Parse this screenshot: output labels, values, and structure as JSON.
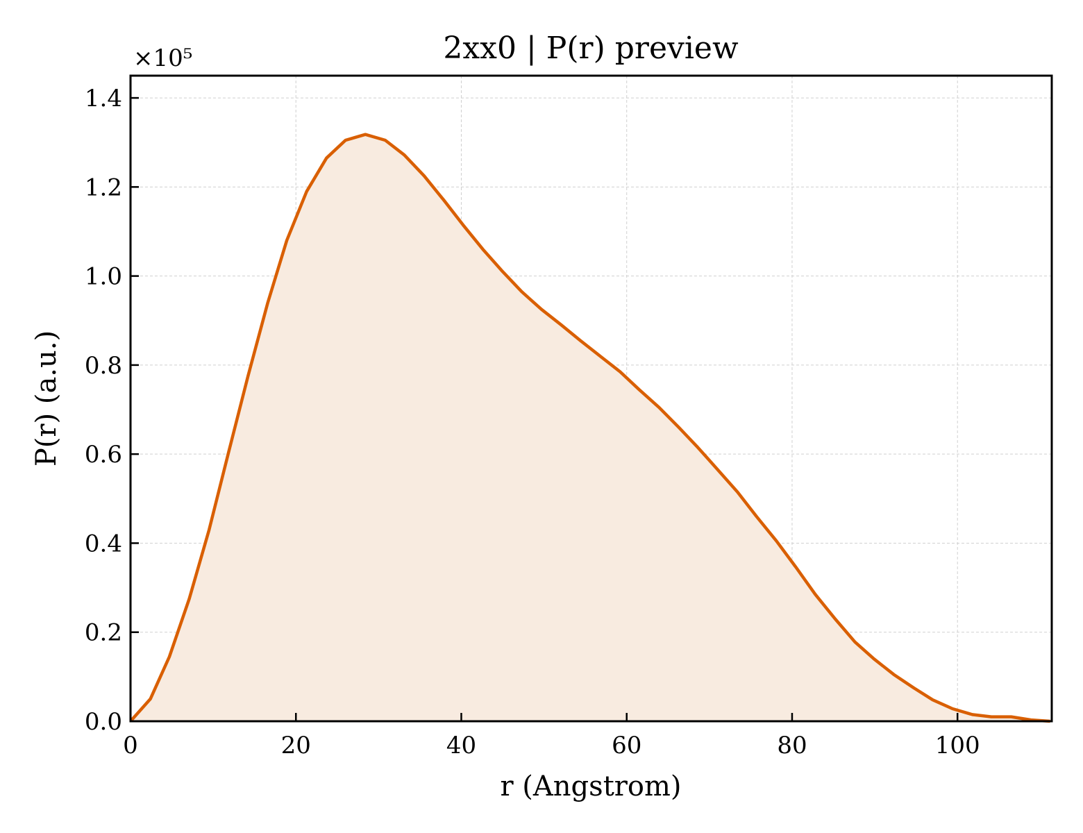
{
  "chart_data": {
    "type": "area",
    "title": "2xx0 | P(r) preview",
    "xlabel": "r (Angstrom)",
    "ylabel": "P(r) (a.u.)",
    "y_offset_text": "×10⁵",
    "xlim": [
      0,
      111.4
    ],
    "ylim": [
      0,
      1.45
    ],
    "xticks": [
      0,
      20,
      40,
      60,
      80,
      100
    ],
    "yticks": [
      0.0,
      0.2,
      0.4,
      0.6,
      0.8,
      1.0,
      1.2,
      1.4
    ],
    "xtick_labels": [
      "0",
      "20",
      "40",
      "60",
      "80",
      "100"
    ],
    "ytick_labels": [
      "0.0",
      "0.2",
      "0.4",
      "0.6",
      "0.8",
      "1.0",
      "1.2",
      "1.4"
    ],
    "grid": true,
    "line_color": "#d95f02",
    "fill_color": "#f8ebe0",
    "series": [
      {
        "x": [
          0,
          2.4,
          4.7,
          7.1,
          9.5,
          11.8,
          14.2,
          16.6,
          18.9,
          21.3,
          23.7,
          26.0,
          28.4,
          30.8,
          33.1,
          35.5,
          37.9,
          40.2,
          42.6,
          45.0,
          47.3,
          49.7,
          52.1,
          54.4,
          56.8,
          59.2,
          61.5,
          63.9,
          66.3,
          68.6,
          71.0,
          73.4,
          75.7,
          78.1,
          80.5,
          82.8,
          85.2,
          87.6,
          89.9,
          92.3,
          94.7,
          97.0,
          99.4,
          101.8,
          104.1,
          106.5,
          108.9,
          111.2
        ],
        "y": [
          0.0,
          0.05,
          0.145,
          0.275,
          0.43,
          0.6,
          0.775,
          0.94,
          1.08,
          1.19,
          1.265,
          1.305,
          1.318,
          1.305,
          1.272,
          1.225,
          1.17,
          1.115,
          1.06,
          1.01,
          0.965,
          0.925,
          0.89,
          0.855,
          0.82,
          0.785,
          0.745,
          0.705,
          0.66,
          0.615,
          0.565,
          0.515,
          0.46,
          0.405,
          0.345,
          0.285,
          0.23,
          0.178,
          0.14,
          0.105,
          0.075,
          0.048,
          0.028,
          0.015,
          0.01,
          0.01,
          0.003,
          0.0
        ]
      }
    ]
  }
}
